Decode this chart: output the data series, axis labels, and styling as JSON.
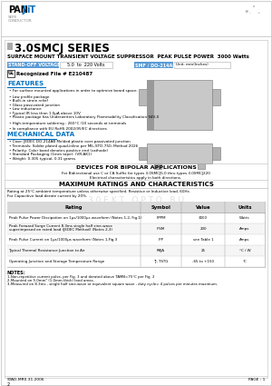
{
  "title": "3.0SMCJ SERIES",
  "subtitle": "SURFACE MOUNT TRANSIENT VOLTAGE SUPPRESSOR  PEAK PULSE POWER  3000 Watts",
  "standoff_label": "STAND-OFF VOLTAGE",
  "standoff_value": "5.0  to  220 Volts",
  "smf_label": "SMF / DO-214AB",
  "smf_right": "Unit: mm(Inches)",
  "ul_text": "Recognized File # E210487",
  "features_title": "FEATURES",
  "features": [
    "For surface mounted applications in order to optimize board space.",
    "Low profile package",
    "Built-in strain relief",
    "Glass passivated junction",
    "Low inductance",
    "Typical IR less than 1.0μA above 10V",
    "Plastic package has Underwriters Laboratory Flammability Classification 94V-0",
    "High-temperature soldering : 260°C /10 seconds at terminals",
    "In compliance with EU RoHS 2002/95/EC directives"
  ],
  "mech_title": "MECHANICAL DATA",
  "mech": [
    "Case: JEDEC DO-214AB Molded plastic over passivated junction",
    "Terminals: Solder plated quad-inline per MIL-STD-750, Method 2026",
    "Polarity: Color band denotes positive end (cathode)",
    "Standard Packaging (1mm tape): (VR-AK1)",
    "Weight: 0.305 typical, 0.31 grams"
  ],
  "bipolar_title": "DEVICES FOR BIPOLAR APPLICATIONS",
  "bipolar_text1": "For Bidirectional use C or CA Suffix for types 3.0SMCJ5.0 thru types 3.0SMCJ220",
  "bipolar_text2": "Electrical characteristics apply in both directions.",
  "maxrating_title": "MAXIMUM RATINGS AND CHARACTERISTICS",
  "maxrating_note1": "Rating at 25°C ambient temperature unless otherwise specified. Resistive or Inductive load, 60Hz.",
  "maxrating_note2": "For Capacitive load derate current by 20%.",
  "table_headers": [
    "Rating",
    "Symbol",
    "Value",
    "Units"
  ],
  "table_rows": [
    [
      "Peak Pulse Power Dissipation on 1μs/1000μs waveform (Notes 1,2, Fig.1)",
      "PPPM",
      "3000",
      "Watts"
    ],
    [
      "Peak Forward Surge Current 8.3ms single half sine-wave\nsuperimposed on rated load (JEDEC Method) (Notes 2,3)",
      "IFSM",
      "200",
      "Amps"
    ],
    [
      "Peak Pulse Current on 1μs/1000μs waveform (Notes 1,Fig.3",
      "IPP",
      "see Table 1",
      "Amps"
    ],
    [
      "Typical Thermal Resistance Junction to Air",
      "RθJA",
      "25",
      "°C / W"
    ],
    [
      "Operating Junction and Storage Temperature Range",
      "TJ, TSTG",
      "-65 to +150",
      "°C"
    ]
  ],
  "notes_title": "NOTES:",
  "notes": [
    "1-Non-repetitive current pulse, per Fig. 3 and derated above TAMB=75°C per Fig. 2",
    "2-Mounted on 5.0mm² (1.0mm thick) land areas.",
    "3-Measured on 8.3ms , single half sine-wave or equivalent square wave , duty cycle= 4 pulses per minutes maximum."
  ],
  "footer_left": "STAD-MR0.31.2006",
  "footer_right": "PAGE : 1",
  "footer_num": "2",
  "bg_color": "#ffffff",
  "standoff_bg": "#5b9bd5",
  "smf_bg": "#5b9bd5",
  "section_color": "#0070c0",
  "table_header_bg": "#d9d9d9",
  "table_border": "#999999",
  "panjit_blue": "#0070c0",
  "watermark_color": "#e0e0e0"
}
